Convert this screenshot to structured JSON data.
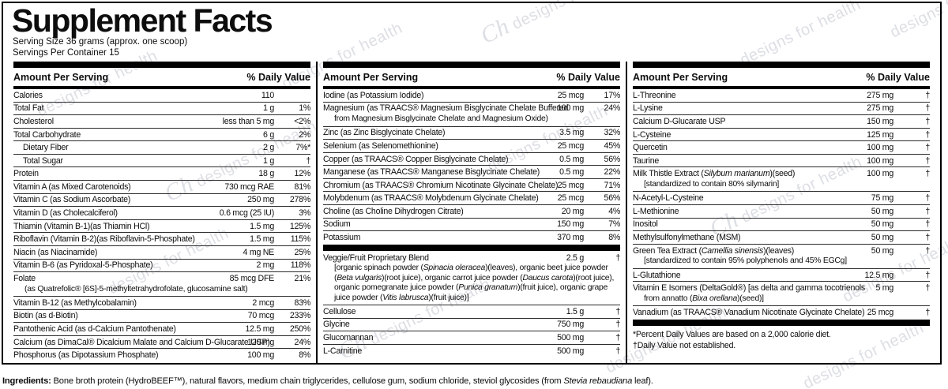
{
  "watermark": {
    "text": "designs for health",
    "logo": "Ch",
    "color": "#dcdfe4"
  },
  "header": {
    "title": "Supplement Facts",
    "serving_size": "Serving Size 36 grams (approx. one scoop)",
    "servings_per_container": "Servings Per Container 15"
  },
  "table": {
    "amount_header": "Amount Per Serving",
    "dv_header": "% Daily Value",
    "columns": [
      {
        "rows": [
          {
            "name": "Calories",
            "amount": "110",
            "dv": ""
          },
          {
            "name": "Total Fat",
            "amount": "1 g",
            "dv": "1%"
          },
          {
            "name": "Cholesterol",
            "amount": "less than 5 mg",
            "dv": "<2%"
          },
          {
            "name": "Total Carbohydrate",
            "amount": "6 g",
            "dv": "2%"
          },
          {
            "name": "Dietary Fiber",
            "amount": "2 g",
            "dv": "7%*",
            "indent": true
          },
          {
            "name": "Total Sugar",
            "amount": "1 g",
            "dv": "†",
            "indent": true
          },
          {
            "name": "Protein",
            "amount": "18 g",
            "dv": "12%"
          },
          {
            "name": "Vitamin A (as Mixed Carotenoids)",
            "amount": "730 mcg RAE",
            "dv": "81%"
          },
          {
            "name": "Vitamin C (as Sodium Ascorbate)",
            "amount": "250 mg",
            "dv": "278%"
          },
          {
            "name": "Vitamin D (as Cholecalciferol)",
            "amount": "0.6 mcg (25 IU)",
            "dv": "3%"
          },
          {
            "name": "Thiamin (Vitamin B-1)(as Thiamin HCl)",
            "amount": "1.5 mg",
            "dv": "125%"
          },
          {
            "name": "Riboflavin (Vitamin B-2)(as Riboflavin-5-Phosphate)",
            "amount": "1.5 mg",
            "dv": "115%"
          },
          {
            "name": "Niacin (as Niacinamide)",
            "amount": "4 mg NE",
            "dv": "25%"
          },
          {
            "name": "Vitamin B-6 (as Pyridoxal-5-Phosphate)",
            "amount": "2 mg",
            "dv": "118%"
          },
          {
            "name": "Folate",
            "amount": "85 mcg DFE",
            "dv": "21%",
            "sub": "(as Quatrefolic® [6S]-5-methyltetrahydrofolate, glucosamine salt)"
          },
          {
            "name": "Vitamin B-12 (as Methylcobalamin)",
            "amount": "2 mcg",
            "dv": "83%"
          },
          {
            "name": "Biotin (as d-Biotin)",
            "amount": "70 mcg",
            "dv": "233%"
          },
          {
            "name": "Pantothenic Acid (as d-Calcium Pantothenate)",
            "amount": "12.5 mg",
            "dv": "250%"
          },
          {
            "name": "Calcium (as DimaCal® Dicalcium Malate and Calcium D-Glucarate USP)",
            "amount": "120 mg",
            "dv": "24%"
          },
          {
            "name": "Phosphorus (as Dipotassium Phosphate)",
            "amount": "100 mg",
            "dv": "8%"
          }
        ]
      },
      {
        "rows": [
          {
            "name": "Iodine (as Potassium Iodide)",
            "amount": "25 mcg",
            "dv": "17%"
          },
          {
            "name": "Magnesium (as TRAACS® Magnesium Bisglycinate Chelate Buffered",
            "amount": "100 mg",
            "dv": "24%",
            "sub": "from Magnesium Bisglycinate Chelate and Magnesium Oxide)"
          },
          {
            "name": "Zinc (as Zinc Bisglycinate Chelate)",
            "amount": "3.5 mg",
            "dv": "32%"
          },
          {
            "name": "Selenium (as Selenomethionine)",
            "amount": "25 mcg",
            "dv": "45%"
          },
          {
            "name": "Copper (as TRAACS® Copper Bisglycinate Chelate)",
            "amount": "0.5 mg",
            "dv": "56%"
          },
          {
            "name": "Manganese (as TRAACS® Manganese Bisglycinate Chelate)",
            "amount": "0.5 mg",
            "dv": "22%"
          },
          {
            "name": "Chromium (as TRAACS® Chromium Nicotinate Glycinate Chelate)",
            "amount": "25 mcg",
            "dv": "71%"
          },
          {
            "name": "Molybdenum (as TRAACS® Molybdenum Glycinate Chelate)",
            "amount": "25 mcg",
            "dv": "56%"
          },
          {
            "name": "Choline (as Choline Dihydrogen Citrate)",
            "amount": "20 mg",
            "dv": "4%"
          },
          {
            "name": "Sodium",
            "amount": "150 mg",
            "dv": "7%"
          },
          {
            "name": "Potassium",
            "amount": "370 mg",
            "dv": "8%"
          },
          {
            "name": "Veggie/Fruit Proprietary Blend",
            "amount": "2.5 g",
            "dv": "†",
            "bar_before": true,
            "sub": "[organic spinach powder (_Spinacia oleracea_)(leaves), organic beet juice powder (_Beta vulgaris_)(root juice), organic carrot juice powder (_Daucus carota_)(root juice), organic pomegranate juice powder (_Punica granatum_)(fruit juice), organic grape juice powder (_Vitis labrusca_)(fruit juice)]"
          },
          {
            "name": "Cellulose",
            "amount": "1.5 g",
            "dv": "†"
          },
          {
            "name": "Glycine",
            "amount": "750 mg",
            "dv": "†"
          },
          {
            "name": "Glucomannan",
            "amount": "500 mg",
            "dv": "†"
          },
          {
            "name": "L-Carnitine",
            "amount": "500 mg",
            "dv": "†"
          }
        ]
      },
      {
        "rows": [
          {
            "name": "L-Threonine",
            "amount": "275 mg",
            "dv": "†"
          },
          {
            "name": "L-Lysine",
            "amount": "275 mg",
            "dv": "†"
          },
          {
            "name": "Calcium D-Glucarate USP",
            "amount": "150 mg",
            "dv": "†"
          },
          {
            "name": "L-Cysteine",
            "amount": "125 mg",
            "dv": "†"
          },
          {
            "name": "Quercetin",
            "amount": "100 mg",
            "dv": "†"
          },
          {
            "name": "Taurine",
            "amount": "100 mg",
            "dv": "†"
          },
          {
            "name": "Milk Thistle Extract (_Silybum marianum_)(seed)",
            "amount": "100 mg",
            "dv": "†",
            "sub": "[standardized to contain 80% silymarin]"
          },
          {
            "name": "N-Acetyl-L-Cysteine",
            "amount": "75 mg",
            "dv": "†"
          },
          {
            "name": "L-Methionine",
            "amount": "50 mg",
            "dv": "†"
          },
          {
            "name": "Inositol",
            "amount": "50 mg",
            "dv": "†"
          },
          {
            "name": "Methylsulfonylmethane (MSM)",
            "amount": "50 mg",
            "dv": "†"
          },
          {
            "name": "Green Tea Extract (_Camellia sinensis_)(leaves)",
            "amount": "50 mg",
            "dv": "†",
            "sub": "[standardized to contain 95% polyphenols and 45% EGCg]"
          },
          {
            "name": "L-Glutathione",
            "amount": "12.5 mg",
            "dv": "†"
          },
          {
            "name": "Vitamin E Isomers (DeltaGold®) [as delta and gamma tocotrienols",
            "amount": "5 mg",
            "dv": "†",
            "sub": "from annatto (_Bixa orellana_)(seed)]"
          },
          {
            "name": "Vanadium (as TRAACS® Vanadium Nicotinate Glycinate Chelate)",
            "amount": "25 mcg",
            "dv": "†"
          }
        ],
        "footnotes": [
          "*Percent Daily Values are based on a 2,000 calorie diet.",
          "†Daily Value not established."
        ]
      }
    ]
  },
  "ingredients": {
    "label": "Ingredients:",
    "text": " Bone broth protein (HydroBEEF™), natural flavors, medium chain triglycerides, cellulose gum, sodium chloride, steviol glycosides (from _Stevia rebaudiana_ leaf)."
  }
}
